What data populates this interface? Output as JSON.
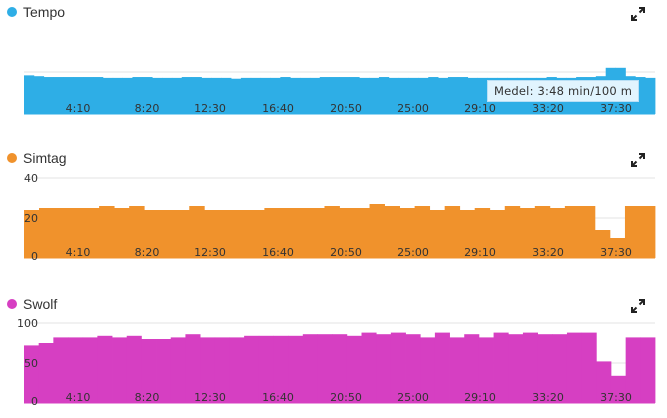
{
  "chart_data": [
    {
      "type": "bar",
      "title": "Tempo",
      "color": "#2eaee6",
      "x_ticks": [
        "4:10",
        "8:20",
        "12:30",
        "16:40",
        "20:50",
        "25:00",
        "29:10",
        "33:20",
        "37:30"
      ],
      "y_ticks": [],
      "tooltip": "Medel: 3:48 min/100 m",
      "values": [
        46,
        45,
        44,
        44,
        44,
        44,
        44,
        44,
        43,
        43,
        43,
        44,
        44,
        43,
        43,
        43,
        44,
        44,
        43,
        43,
        43,
        42,
        43,
        43,
        43,
        43,
        44,
        43,
        43,
        43,
        44,
        44,
        44,
        44,
        43,
        43,
        44,
        43,
        43,
        43,
        43,
        44,
        43,
        44,
        44,
        43,
        43,
        43,
        43,
        43,
        43,
        43,
        43,
        44,
        43,
        43,
        44,
        44,
        45,
        55,
        55,
        45,
        44,
        43
      ],
      "ylim": [
        0,
        100
      ],
      "grid": true
    },
    {
      "type": "bar",
      "title": "Simtag",
      "color": "#f0922c",
      "x_ticks": [
        "4:10",
        "8:20",
        "12:30",
        "16:40",
        "20:50",
        "25:00",
        "29:10",
        "33:20",
        "37:30"
      ],
      "y_ticks": [
        "40",
        "20",
        "0"
      ],
      "values": [
        24,
        25,
        25,
        25,
        25,
        26,
        25,
        26,
        24,
        24,
        24,
        26,
        24,
        24,
        24,
        24,
        25,
        25,
        25,
        25,
        26,
        25,
        25,
        27,
        26,
        25,
        26,
        24,
        26,
        24,
        25,
        24,
        26,
        25,
        26,
        25,
        26,
        26,
        14,
        10,
        26,
        26
      ],
      "ylim": [
        0,
        40
      ],
      "grid": true
    },
    {
      "type": "bar",
      "title": "Swolf",
      "color": "#d63fc2",
      "x_ticks": [
        "4:10",
        "8:20",
        "12:30",
        "16:40",
        "20:50",
        "25:00",
        "29:10",
        "33:20",
        "37:30"
      ],
      "y_ticks": [
        "100",
        "50",
        "0"
      ],
      "values": [
        72,
        75,
        82,
        82,
        82,
        84,
        82,
        84,
        80,
        80,
        82,
        86,
        82,
        82,
        82,
        84,
        84,
        84,
        84,
        86,
        86,
        86,
        84,
        88,
        86,
        88,
        86,
        82,
        88,
        82,
        86,
        82,
        88,
        86,
        88,
        86,
        86,
        88,
        88,
        52,
        34,
        82,
        82
      ],
      "ylim": [
        0,
        100
      ],
      "grid": true
    }
  ]
}
